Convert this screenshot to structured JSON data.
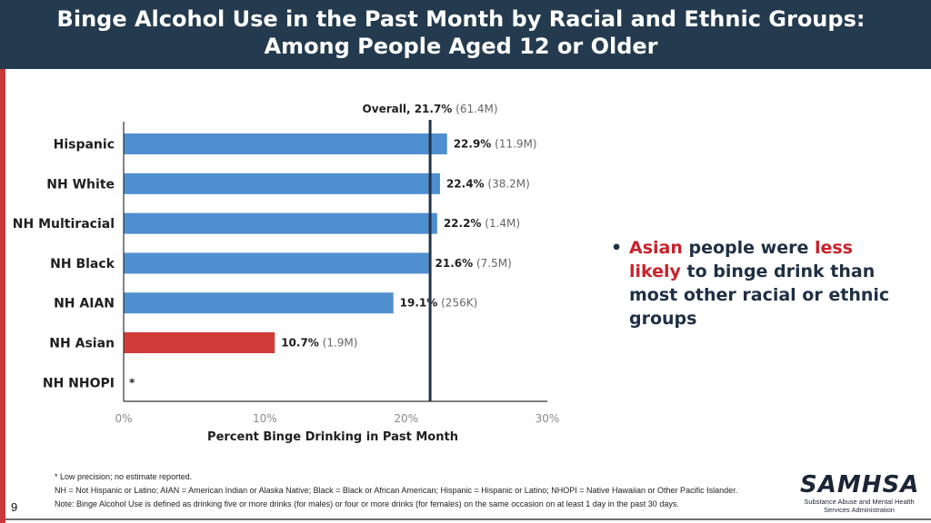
{
  "slide": {
    "title_line1": "Binge Alcohol Use in the Past Month by Racial and Ethnic Groups:",
    "title_line2": "Among People Aged 12 or Older",
    "page_number": "9"
  },
  "bullet": {
    "part1": "Asian",
    "part2": " people were ",
    "part3": "less likely",
    "part4": " to binge drink than most other racial or ethnic groups"
  },
  "footnotes": {
    "line1": "* Low precision; no estimate reported.",
    "line2": "NH = Not Hispanic or Latino; AIAN = American Indian or Alaska Native; Black = Black or African American; Hispanic = Hispanic or Latino; NHOPI = Native Hawaiian or Other Pacific Islander.",
    "line3": "Note: Binge Alcohol Use is defined as drinking five or more drinks (for males) or four or more drinks (for females) on the same occasion on at least 1 day in the past 30 days."
  },
  "logo": {
    "wordmark": "SAMHSA",
    "subtitle_line1": "Substance Abuse and Mental Health",
    "subtitle_line2": "Services Administration"
  },
  "chart_data": {
    "type": "bar",
    "orientation": "horizontal",
    "categories": [
      "Hispanic",
      "NH White",
      "NH Multiracial",
      "NH Black",
      "NH AIAN",
      "NH Asian",
      "NH NHOPI"
    ],
    "values": [
      22.9,
      22.4,
      22.2,
      21.6,
      19.1,
      10.7,
      null
    ],
    "value_labels": [
      "22.9%",
      "22.4%",
      "22.2%",
      "21.6%",
      "19.1%",
      "10.7%",
      "*"
    ],
    "count_labels": [
      "(11.9M)",
      "(38.2M)",
      "(1.4M)",
      "(7.5M)",
      "(256K)",
      "(1.9M)",
      ""
    ],
    "highlight_category": "NH Asian",
    "colors": {
      "bar": "#4f8fcf",
      "highlight": "#d13c38",
      "reference_line": "#223447",
      "axis": "#333333"
    },
    "reference": {
      "value": 21.7,
      "label_bold": "Overall, 21.7%",
      "label_count": "(61.4M)"
    },
    "xlim": [
      0,
      30
    ],
    "xticks": [
      "0%",
      "10%",
      "20%",
      "30%"
    ],
    "xlabel": "Percent Binge Drinking in Past Month",
    "ylabel": "",
    "grid": false
  }
}
